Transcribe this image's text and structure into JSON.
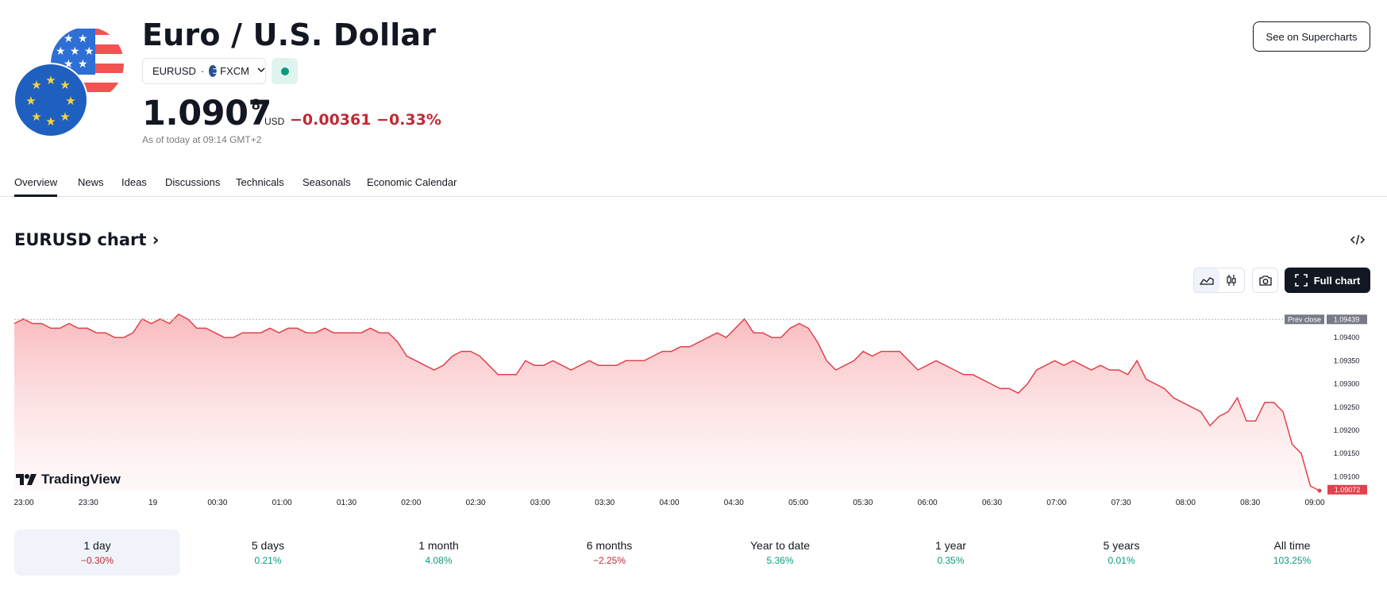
{
  "header": {
    "title": "Euro / U.S. Dollar",
    "symbol": "EURUSD",
    "exchange": "FXCM",
    "price_main": "1.0907",
    "price_sup": "8",
    "currency": "USD",
    "change": "−0.00361 −0.33%",
    "as_of": "As of today at 09:14 GMT+2",
    "supercharts_label": "See on Supercharts"
  },
  "tabs": [
    "Overview",
    "News",
    "Ideas",
    "Discussions",
    "Technicals",
    "Seasonals",
    "Economic Calendar"
  ],
  "chart_section": {
    "title": "EURUSD chart",
    "full_chart_label": "Full chart",
    "logo_text": "TradingView"
  },
  "colors": {
    "line": "#e0424b",
    "negative": "#c02a34",
    "positive": "#089981"
  },
  "chart_data": {
    "type": "area",
    "x_labels": [
      "23:00",
      "23:30",
      "19",
      "00:30",
      "01:00",
      "01:30",
      "02:00",
      "02:30",
      "03:00",
      "03:30",
      "04:00",
      "04:30",
      "05:00",
      "05:30",
      "06:00",
      "06:30",
      "07:00",
      "07:30",
      "08:00",
      "08:30",
      "09:00"
    ],
    "y_ticks": [
      "1.09400",
      "1.09350",
      "1.09300",
      "1.09250",
      "1.09200",
      "1.09150",
      "1.09100"
    ],
    "ylim": [
      1.0907,
      1.0946
    ],
    "prev_close": {
      "label": "Prev close",
      "value": "1.09439"
    },
    "last_price": "1.09072",
    "series": [
      {
        "values": [
          1.0943,
          1.0944,
          1.0943,
          1.0943,
          1.0942,
          1.0942,
          1.0943,
          1.0942,
          1.0942,
          1.0941,
          1.0941,
          1.094,
          1.094,
          1.0941,
          1.0944,
          1.0943,
          1.0944,
          1.0943,
          1.0945,
          1.0944,
          1.0942,
          1.0942,
          1.0941,
          1.094,
          1.094,
          1.0941,
          1.0941,
          1.0941,
          1.0942,
          1.0941,
          1.0942,
          1.0942,
          1.0941,
          1.0941,
          1.0942,
          1.0941,
          1.0941,
          1.0941,
          1.0941,
          1.0942,
          1.0941,
          1.0941,
          1.0939,
          1.0936,
          1.0935,
          1.0934,
          1.0933,
          1.0934,
          1.0936,
          1.0937,
          1.0937,
          1.0936,
          1.0934,
          1.0932,
          1.0932,
          1.0932,
          1.0935,
          1.0934,
          1.0934,
          1.0935,
          1.0934,
          1.0933,
          1.0934,
          1.0935,
          1.0934,
          1.0934,
          1.0934,
          1.0935,
          1.0935,
          1.0935,
          1.0936,
          1.0937,
          1.0937,
          1.0938,
          1.0938,
          1.0939,
          1.094,
          1.0941,
          1.094,
          1.0942,
          1.0944,
          1.0941,
          1.0941,
          1.094,
          1.094,
          1.0942,
          1.0943,
          1.0942,
          1.0939,
          1.0935,
          1.0933,
          1.0934,
          1.0935,
          1.0937,
          1.0936,
          1.0937,
          1.0937,
          1.0937,
          1.0935,
          1.0933,
          1.0934,
          1.0935,
          1.0934,
          1.0933,
          1.0932,
          1.0932,
          1.0931,
          1.093,
          1.0929,
          1.0929,
          1.0928,
          1.093,
          1.0933,
          1.0934,
          1.0935,
          1.0934,
          1.0935,
          1.0934,
          1.0933,
          1.0934,
          1.0933,
          1.0933,
          1.0932,
          1.0935,
          1.0931,
          1.093,
          1.0929,
          1.0927,
          1.0926,
          1.0925,
          1.0924,
          1.0921,
          1.0923,
          1.0924,
          1.0927,
          1.0922,
          1.0922,
          1.0926,
          1.0926,
          1.0924,
          1.0917,
          1.0915,
          1.0908,
          1.0907
        ]
      }
    ]
  },
  "periods": [
    {
      "label": "1 day",
      "value": "−0.30%",
      "trend": "neg"
    },
    {
      "label": "5 days",
      "value": "0.21%",
      "trend": "pos"
    },
    {
      "label": "1 month",
      "value": "4.08%",
      "trend": "pos"
    },
    {
      "label": "6 months",
      "value": "−2.25%",
      "trend": "neg"
    },
    {
      "label": "Year to date",
      "value": "5.36%",
      "trend": "pos"
    },
    {
      "label": "1 year",
      "value": "0.35%",
      "trend": "pos"
    },
    {
      "label": "5 years",
      "value": "0.01%",
      "trend": "pos"
    },
    {
      "label": "All time",
      "value": "103.25%",
      "trend": "pos"
    }
  ]
}
